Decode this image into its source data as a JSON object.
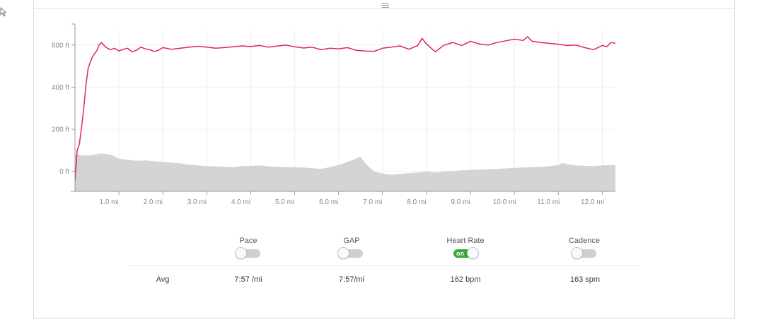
{
  "chart_data": {
    "type": "line",
    "y_ticks": [
      "600 ft",
      "400 ft",
      "200 ft",
      "0 ft"
    ],
    "y_tick_values": [
      600,
      400,
      200,
      0
    ],
    "x_ticks": [
      "1.0 mi",
      "2.0 mi",
      "3.0 mi",
      "4.0 mi",
      "5.0 mi",
      "6.0 mi",
      "7.0 mi",
      "8.0 mi",
      "9.0 mi",
      "10.0 mi",
      "11.0 mi",
      "12.0 mi"
    ],
    "x_tick_values": [
      1,
      2,
      3,
      4,
      5,
      6,
      7,
      8,
      9,
      10,
      11,
      12
    ],
    "xlim": [
      0,
      12.3
    ],
    "ylim": [
      -95,
      700
    ],
    "grid": true,
    "series": [
      {
        "color": "#e0245e",
        "x": [
          0,
          0.05,
          0.1,
          0.15,
          0.2,
          0.25,
          0.3,
          0.35,
          0.4,
          0.45,
          0.5,
          0.55,
          0.6,
          0.7,
          0.8,
          0.9,
          1.0,
          1.1,
          1.2,
          1.3,
          1.4,
          1.5,
          1.6,
          1.7,
          1.8,
          1.9,
          2.0,
          2.2,
          2.4,
          2.6,
          2.8,
          3.0,
          3.2,
          3.4,
          3.6,
          3.8,
          4.0,
          4.2,
          4.4,
          4.6,
          4.8,
          5.0,
          5.2,
          5.4,
          5.6,
          5.8,
          6.0,
          6.2,
          6.4,
          6.6,
          6.8,
          7.0,
          7.2,
          7.4,
          7.6,
          7.8,
          7.9,
          8.0,
          8.2,
          8.4,
          8.6,
          8.8,
          9.0,
          9.2,
          9.4,
          9.6,
          9.8,
          10.0,
          10.2,
          10.3,
          10.4,
          10.6,
          10.8,
          11.0,
          11.2,
          11.4,
          11.6,
          11.8,
          12.0,
          12.1,
          12.2,
          12.3
        ],
        "values": [
          -45,
          100,
          130,
          210,
          300,
          410,
          490,
          520,
          545,
          560,
          575,
          600,
          612,
          590,
          578,
          585,
          572,
          580,
          585,
          568,
          576,
          590,
          582,
          578,
          570,
          575,
          588,
          580,
          585,
          590,
          594,
          590,
          585,
          588,
          592,
          596,
          593,
          598,
          590,
          595,
          600,
          592,
          586,
          590,
          578,
          585,
          582,
          588,
          575,
          572,
          570,
          585,
          590,
          596,
          580,
          598,
          632,
          605,
          568,
          600,
          612,
          598,
          618,
          605,
          600,
          612,
          620,
          628,
          622,
          640,
          618,
          612,
          608,
          604,
          598,
          600,
          588,
          578,
          598,
          592,
          612,
          608
        ]
      },
      {
        "color": "#d4d4d4",
        "x": [
          0,
          0.2,
          0.4,
          0.6,
          0.8,
          1.0,
          1.2,
          1.4,
          1.6,
          1.8,
          2.0,
          2.2,
          2.4,
          2.6,
          2.8,
          3.0,
          3.2,
          3.4,
          3.6,
          3.8,
          4.0,
          4.2,
          4.4,
          4.6,
          4.8,
          5.0,
          5.2,
          5.4,
          5.6,
          5.8,
          6.0,
          6.2,
          6.4,
          6.5,
          6.6,
          6.8,
          7.0,
          7.2,
          7.4,
          7.6,
          7.8,
          8.0,
          8.2,
          8.4,
          8.6,
          8.8,
          9.0,
          9.2,
          9.4,
          9.6,
          9.8,
          10.0,
          10.2,
          10.4,
          10.6,
          10.8,
          11.0,
          11.1,
          11.2,
          11.4,
          11.6,
          11.8,
          12.0,
          12.2,
          12.3
        ],
        "values": [
          80,
          75,
          78,
          85,
          80,
          60,
          55,
          50,
          52,
          48,
          45,
          42,
          38,
          32,
          28,
          25,
          24,
          22,
          20,
          25,
          26,
          28,
          24,
          22,
          20,
          20,
          18,
          15,
          12,
          20,
          30,
          45,
          60,
          70,
          40,
          0,
          -10,
          -15,
          -12,
          -8,
          -5,
          0,
          -5,
          0,
          2,
          5,
          6,
          8,
          10,
          12,
          14,
          16,
          18,
          20,
          22,
          25,
          30,
          40,
          35,
          28,
          26,
          25,
          28,
          30,
          30
        ]
      }
    ]
  },
  "metrics": [
    {
      "label": "Pace",
      "on": false,
      "avg": "7:57 /mi"
    },
    {
      "label": "GAP",
      "on": false,
      "avg": "7:57/mi"
    },
    {
      "label": "Heart Rate",
      "on": true,
      "avg": "162 bpm"
    },
    {
      "label": "Cadence",
      "on": false,
      "avg": "163 spm"
    }
  ],
  "toggle_on_text": "on",
  "avg_label": "Avg"
}
